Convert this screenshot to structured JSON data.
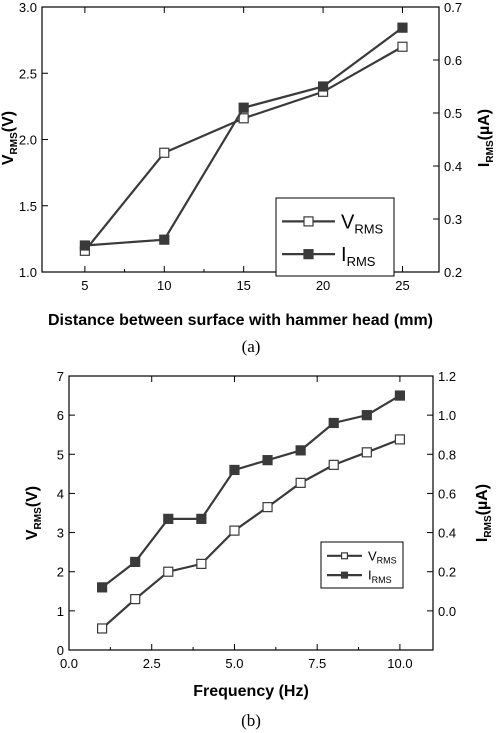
{
  "chart_data": [
    {
      "type": "line",
      "x": [
        5,
        10,
        15,
        20,
        25
      ],
      "xlabel": "Distance between surface with hammer head (mm)",
      "ylabel_left": {
        "main": "V",
        "sub": "RMS",
        "unit": "(V)"
      },
      "ylabel_right": {
        "main": "I",
        "sub": "RMS",
        "unit": "(µA)"
      },
      "xlim": [
        2.3,
        27.3
      ],
      "ylim_left": [
        1.0,
        3.0
      ],
      "ylim_right": [
        0.2,
        0.7
      ],
      "xticks": [
        "5",
        "10",
        "15",
        "20",
        "25"
      ],
      "yticks_left": [
        "1.0",
        "1.5",
        "2.0",
        "2.5",
        "3.0"
      ],
      "yticks_right": [
        "0.2",
        "0.3",
        "0.4",
        "0.5",
        "0.6",
        "0.7"
      ],
      "series": [
        {
          "name": "V",
          "name_sub": "RMS",
          "axis": "left",
          "marker": "open-square",
          "values": [
            1.16,
            1.9,
            2.16,
            2.36,
            2.7
          ]
        },
        {
          "name": "I",
          "name_sub": "RMS",
          "axis": "right",
          "marker": "filled-square",
          "values": [
            0.25,
            0.261,
            0.51,
            0.55,
            0.661
          ]
        }
      ],
      "legend_position": "center-right",
      "caption": "(a)",
      "color": "#3a3a3a"
    },
    {
      "type": "line",
      "x": [
        1,
        2,
        3,
        4,
        5,
        6,
        7,
        8,
        9,
        10
      ],
      "xlabel": "Frequency (Hz)",
      "ylabel_left": {
        "main": "V",
        "sub": "RMS",
        "unit": "(V)"
      },
      "ylabel_right": {
        "main": "I",
        "sub": "RMS",
        "unit": "(µA)"
      },
      "xlim": [
        0,
        11
      ],
      "ylim_left": [
        0,
        7
      ],
      "ylim_right": [
        -0.2,
        1.2
      ],
      "xticks": [
        "0.0",
        "2.5",
        "5.0",
        "7.5",
        "10.0"
      ],
      "yticks_left": [
        "0",
        "1",
        "2",
        "3",
        "4",
        "5",
        "6",
        "7"
      ],
      "yticks_right": [
        "0.0",
        "0.2",
        "0.4",
        "0.6",
        "0.8",
        "1.0",
        "1.2"
      ],
      "series": [
        {
          "name": "V",
          "name_sub": "RMS",
          "axis": "left",
          "marker": "open-square",
          "values": [
            0.55,
            1.3,
            2.0,
            2.2,
            3.05,
            3.65,
            4.27,
            4.73,
            5.05,
            5.38
          ]
        },
        {
          "name": "I",
          "name_sub": "RMS",
          "axis": "right",
          "marker": "filled-square",
          "values": [
            0.12,
            0.25,
            0.47,
            0.47,
            0.72,
            0.77,
            0.82,
            0.96,
            1.0,
            1.1
          ]
        }
      ],
      "legend_position": "bottom-right",
      "caption": "(b)",
      "color": "#3a3a3a"
    }
  ]
}
